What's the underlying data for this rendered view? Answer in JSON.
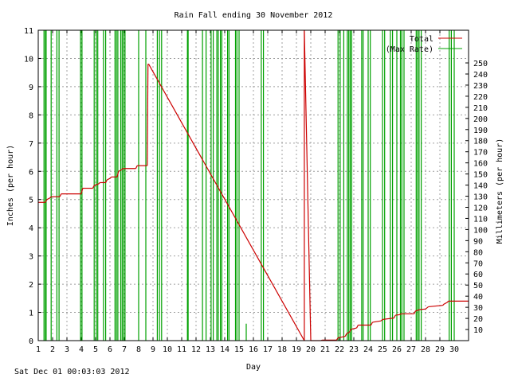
{
  "chart_data": {
    "type": "line",
    "title": "Rain Fall ending 30 November 2012",
    "xlabel": "Day",
    "ylabel": "Inches (per hour)",
    "y2label": "Millimeters (per hour)",
    "xlim": [
      1,
      31
    ],
    "ylim": [
      0,
      11
    ],
    "y2lim": [
      0,
      279.4
    ],
    "grid": true,
    "legend_position": "top-right",
    "x_ticks": [
      1,
      2,
      3,
      4,
      5,
      6,
      7,
      8,
      9,
      10,
      11,
      12,
      13,
      14,
      15,
      16,
      17,
      18,
      19,
      20,
      21,
      22,
      23,
      24,
      25,
      26,
      27,
      28,
      29,
      30
    ],
    "y_ticks": [
      0,
      1,
      2,
      3,
      4,
      5,
      6,
      7,
      8,
      9,
      10,
      11
    ],
    "y2_ticks": [
      10,
      20,
      30,
      40,
      50,
      60,
      70,
      80,
      90,
      100,
      110,
      120,
      130,
      140,
      150,
      160,
      170,
      180,
      190,
      200,
      210,
      220,
      230,
      240,
      250
    ],
    "colors": {
      "total": "#cc0000",
      "rate": "#00a000",
      "grid": "#a0a0a0"
    },
    "series": [
      {
        "name": "Total",
        "points": [
          [
            1.0,
            4.9
          ],
          [
            1.5,
            4.9
          ],
          [
            1.6,
            5.0
          ],
          [
            1.8,
            5.05
          ],
          [
            1.9,
            5.1
          ],
          [
            2.5,
            5.1
          ],
          [
            2.6,
            5.2
          ],
          [
            4.0,
            5.2
          ],
          [
            4.1,
            5.4
          ],
          [
            4.8,
            5.4
          ],
          [
            4.9,
            5.5
          ],
          [
            5.2,
            5.55
          ],
          [
            5.3,
            5.6
          ],
          [
            5.7,
            5.6
          ],
          [
            5.8,
            5.7
          ],
          [
            6.0,
            5.75
          ],
          [
            6.1,
            5.8
          ],
          [
            6.5,
            5.8
          ],
          [
            6.6,
            6.0
          ],
          [
            6.8,
            6.05
          ],
          [
            6.9,
            6.1
          ],
          [
            7.8,
            6.1
          ],
          [
            7.9,
            6.2
          ],
          [
            8.6,
            6.2
          ],
          [
            8.65,
            9.8
          ],
          [
            8.7,
            9.8
          ],
          [
            19.55,
            0
          ],
          [
            19.55,
            11
          ],
          [
            20.0,
            0
          ],
          [
            20.7,
            0
          ],
          [
            20.8,
            0.02
          ],
          [
            21.8,
            0.02
          ],
          [
            21.9,
            0.1
          ],
          [
            22.4,
            0.15
          ],
          [
            22.5,
            0.25
          ],
          [
            22.7,
            0.3
          ],
          [
            22.8,
            0.4
          ],
          [
            23.2,
            0.45
          ],
          [
            23.3,
            0.55
          ],
          [
            24.2,
            0.55
          ],
          [
            24.3,
            0.65
          ],
          [
            24.9,
            0.7
          ],
          [
            25.0,
            0.75
          ],
          [
            25.8,
            0.8
          ],
          [
            25.9,
            0.9
          ],
          [
            26.2,
            0.92
          ],
          [
            26.3,
            0.95
          ],
          [
            27.2,
            0.95
          ],
          [
            27.3,
            1.05
          ],
          [
            27.6,
            1.1
          ],
          [
            28.0,
            1.12
          ],
          [
            28.2,
            1.2
          ],
          [
            29.2,
            1.25
          ],
          [
            29.3,
            1.3
          ],
          [
            29.5,
            1.35
          ],
          [
            29.6,
            1.4
          ],
          [
            31.0,
            1.4
          ]
        ]
      },
      {
        "name": "(Max Rate)",
        "spikes": [
          [
            1.4,
            11
          ],
          [
            1.5,
            11
          ],
          [
            1.55,
            11
          ],
          [
            1.9,
            11
          ],
          [
            2.3,
            11
          ],
          [
            2.45,
            11
          ],
          [
            3.95,
            11
          ],
          [
            4.05,
            11
          ],
          [
            4.9,
            11
          ],
          [
            5.05,
            11
          ],
          [
            5.15,
            11
          ],
          [
            5.55,
            11
          ],
          [
            5.7,
            11
          ],
          [
            6.35,
            11
          ],
          [
            6.45,
            11
          ],
          [
            6.55,
            11
          ],
          [
            6.75,
            11
          ],
          [
            6.85,
            11
          ],
          [
            6.95,
            11
          ],
          [
            7.05,
            11
          ],
          [
            8.0,
            11
          ],
          [
            8.5,
            11
          ],
          [
            9.3,
            11
          ],
          [
            9.45,
            11
          ],
          [
            9.6,
            11
          ],
          [
            11.4,
            11
          ],
          [
            11.45,
            11
          ],
          [
            12.45,
            11
          ],
          [
            12.7,
            11
          ],
          [
            13.05,
            11
          ],
          [
            13.2,
            11
          ],
          [
            13.45,
            11
          ],
          [
            13.55,
            11
          ],
          [
            13.7,
            11
          ],
          [
            13.8,
            11
          ],
          [
            14.2,
            11
          ],
          [
            14.3,
            11
          ],
          [
            14.75,
            11
          ],
          [
            14.85,
            11
          ],
          [
            15.0,
            11
          ],
          [
            15.5,
            0.6
          ],
          [
            16.55,
            11
          ],
          [
            16.7,
            11
          ],
          [
            21.9,
            11
          ],
          [
            22.05,
            11
          ],
          [
            22.3,
            11
          ],
          [
            22.55,
            11
          ],
          [
            22.65,
            11
          ],
          [
            22.75,
            11
          ],
          [
            22.85,
            11
          ],
          [
            23.55,
            11
          ],
          [
            23.65,
            11
          ],
          [
            24.0,
            11
          ],
          [
            24.15,
            11
          ],
          [
            25.0,
            11
          ],
          [
            25.15,
            11
          ],
          [
            25.55,
            11
          ],
          [
            25.7,
            11
          ],
          [
            26.0,
            11
          ],
          [
            26.25,
            11
          ],
          [
            26.35,
            11
          ],
          [
            26.5,
            11
          ],
          [
            27.35,
            11
          ],
          [
            27.45,
            11
          ],
          [
            27.55,
            11
          ],
          [
            27.7,
            11
          ],
          [
            29.65,
            11
          ],
          [
            29.8,
            11
          ],
          [
            30.0,
            11
          ]
        ]
      }
    ]
  },
  "footer": {
    "timestamp": "Sat Dec 01 00:03:03 2012"
  }
}
